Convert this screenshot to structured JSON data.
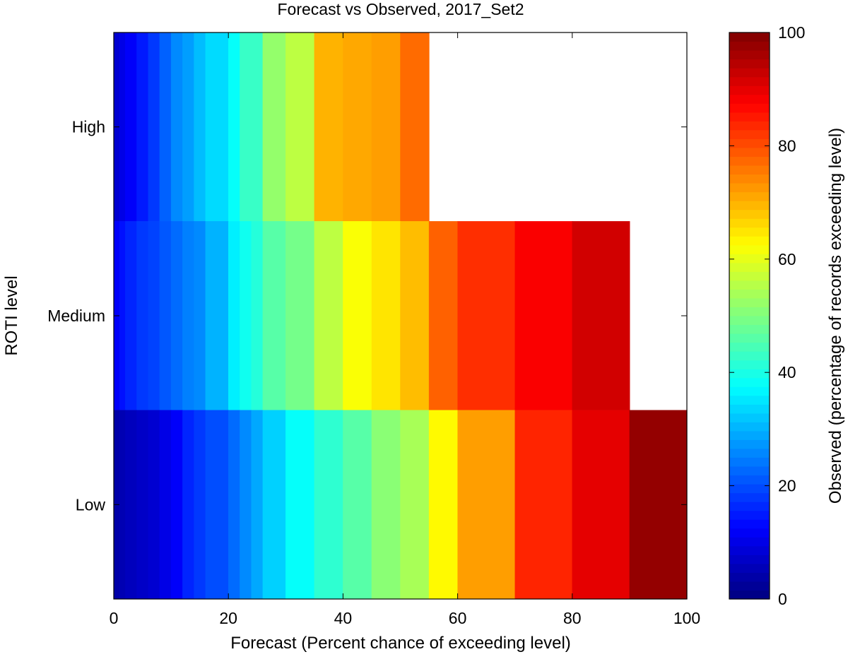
{
  "chart_data": {
    "type": "heatmap",
    "title": "Forecast vs Observed, 2017_Set2",
    "xlabel": "Forecast (Percent chance of exceeding level)",
    "ylabel": "ROTI level",
    "colorbar_label": "Observed (percentage of records exceeding level)",
    "colormap": "jet",
    "xlim": [
      0,
      100
    ],
    "x_ticks": [
      "0",
      "20",
      "40",
      "60",
      "80",
      "100"
    ],
    "color_range": [
      0,
      100
    ],
    "colorbar_ticks": [
      "0",
      "20",
      "40",
      "60",
      "80",
      "100"
    ],
    "rows": [
      {
        "label": "High",
        "cells": [
          {
            "x0": 0,
            "x1": 1,
            "value": 8
          },
          {
            "x0": 1,
            "x1": 2,
            "value": 10
          },
          {
            "x0": 2,
            "x1": 4,
            "value": 12
          },
          {
            "x0": 4,
            "x1": 6,
            "value": 15
          },
          {
            "x0": 6,
            "x1": 8,
            "value": 18
          },
          {
            "x0": 8,
            "x1": 10,
            "value": 22
          },
          {
            "x0": 10,
            "x1": 12,
            "value": 26
          },
          {
            "x0": 12,
            "x1": 14,
            "value": 28
          },
          {
            "x0": 14,
            "x1": 16,
            "value": 31
          },
          {
            "x0": 16,
            "x1": 20,
            "value": 34
          },
          {
            "x0": 20,
            "x1": 22,
            "value": 38
          },
          {
            "x0": 22,
            "x1": 26,
            "value": 43
          },
          {
            "x0": 26,
            "x1": 30,
            "value": 52
          },
          {
            "x0": 30,
            "x1": 35,
            "value": 56
          },
          {
            "x0": 35,
            "x1": 40,
            "value": 70
          },
          {
            "x0": 40,
            "x1": 45,
            "value": 71
          },
          {
            "x0": 45,
            "x1": 50,
            "value": 72
          },
          {
            "x0": 50,
            "x1": 55,
            "value": 77
          }
        ]
      },
      {
        "label": "Medium",
        "cells": [
          {
            "x0": 0,
            "x1": 1,
            "value": 12
          },
          {
            "x0": 1,
            "x1": 2,
            "value": 14
          },
          {
            "x0": 2,
            "x1": 4,
            "value": 16
          },
          {
            "x0": 4,
            "x1": 6,
            "value": 18
          },
          {
            "x0": 6,
            "x1": 8,
            "value": 19
          },
          {
            "x0": 8,
            "x1": 10,
            "value": 21
          },
          {
            "x0": 10,
            "x1": 12,
            "value": 23
          },
          {
            "x0": 12,
            "x1": 14,
            "value": 25
          },
          {
            "x0": 14,
            "x1": 16,
            "value": 26
          },
          {
            "x0": 16,
            "x1": 20,
            "value": 30
          },
          {
            "x0": 20,
            "x1": 22,
            "value": 36
          },
          {
            "x0": 22,
            "x1": 24,
            "value": 39
          },
          {
            "x0": 24,
            "x1": 26,
            "value": 41
          },
          {
            "x0": 26,
            "x1": 30,
            "value": 46
          },
          {
            "x0": 30,
            "x1": 35,
            "value": 49
          },
          {
            "x0": 35,
            "x1": 40,
            "value": 56
          },
          {
            "x0": 40,
            "x1": 45,
            "value": 62
          },
          {
            "x0": 45,
            "x1": 50,
            "value": 65
          },
          {
            "x0": 50,
            "x1": 55,
            "value": 69
          },
          {
            "x0": 55,
            "x1": 60,
            "value": 78
          },
          {
            "x0": 60,
            "x1": 70,
            "value": 83
          },
          {
            "x0": 70,
            "x1": 80,
            "value": 88
          },
          {
            "x0": 80,
            "x1": 90,
            "value": 92
          }
        ]
      },
      {
        "label": "Low",
        "cells": [
          {
            "x0": 0,
            "x1": 1,
            "value": 4
          },
          {
            "x0": 1,
            "x1": 2,
            "value": 5
          },
          {
            "x0": 2,
            "x1": 4,
            "value": 6
          },
          {
            "x0": 4,
            "x1": 6,
            "value": 7
          },
          {
            "x0": 6,
            "x1": 8,
            "value": 8
          },
          {
            "x0": 8,
            "x1": 10,
            "value": 10
          },
          {
            "x0": 10,
            "x1": 12,
            "value": 12
          },
          {
            "x0": 12,
            "x1": 14,
            "value": 16
          },
          {
            "x0": 14,
            "x1": 16,
            "value": 18
          },
          {
            "x0": 16,
            "x1": 20,
            "value": 20
          },
          {
            "x0": 20,
            "x1": 22,
            "value": 23
          },
          {
            "x0": 22,
            "x1": 24,
            "value": 26
          },
          {
            "x0": 24,
            "x1": 26,
            "value": 29
          },
          {
            "x0": 26,
            "x1": 30,
            "value": 33
          },
          {
            "x0": 30,
            "x1": 35,
            "value": 38
          },
          {
            "x0": 35,
            "x1": 40,
            "value": 42
          },
          {
            "x0": 40,
            "x1": 45,
            "value": 46
          },
          {
            "x0": 45,
            "x1": 50,
            "value": 51
          },
          {
            "x0": 50,
            "x1": 55,
            "value": 54
          },
          {
            "x0": 55,
            "x1": 60,
            "value": 63
          },
          {
            "x0": 60,
            "x1": 70,
            "value": 72
          },
          {
            "x0": 70,
            "x1": 80,
            "value": 84
          },
          {
            "x0": 80,
            "x1": 90,
            "value": 90
          },
          {
            "x0": 90,
            "x1": 100,
            "value": 98
          }
        ]
      }
    ]
  }
}
